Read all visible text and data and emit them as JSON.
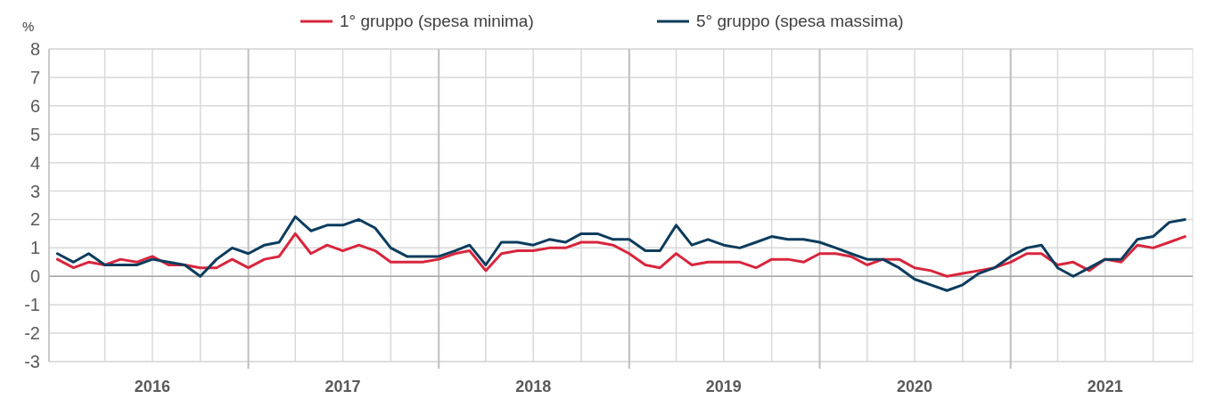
{
  "chart_data": {
    "type": "line",
    "ylabel": "%",
    "legend": "top",
    "grid": true,
    "marker": "none",
    "line_style": "solid",
    "ylim": [
      -3,
      8
    ],
    "yticks": [
      -3,
      -2,
      -1,
      0,
      1,
      2,
      3,
      4,
      5,
      6,
      7,
      8
    ],
    "xlim": [
      "2015-12-16",
      "2021-12-16"
    ],
    "xticks": [
      {
        "value": "2016-04-01",
        "label": null
      },
      {
        "value": "2016-07-01",
        "label": "2016"
      },
      {
        "value": "2016-10-01",
        "label": null
      },
      {
        "value": "2017-01-01",
        "label": null
      },
      {
        "value": "2017-04-01",
        "label": null
      },
      {
        "value": "2017-07-01",
        "label": "2017"
      },
      {
        "value": "2017-10-01",
        "label": null
      },
      {
        "value": "2018-01-01",
        "label": null
      },
      {
        "value": "2018-04-01",
        "label": null
      },
      {
        "value": "2018-07-01",
        "label": "2018"
      },
      {
        "value": "2018-10-01",
        "label": null
      },
      {
        "value": "2019-01-01",
        "label": null
      },
      {
        "value": "2019-04-01",
        "label": null
      },
      {
        "value": "2019-07-01",
        "label": "2019"
      },
      {
        "value": "2019-10-01",
        "label": null
      },
      {
        "value": "2020-01-01",
        "label": null
      },
      {
        "value": "2020-04-01",
        "label": null
      },
      {
        "value": "2020-07-01",
        "label": "2020"
      },
      {
        "value": "2020-10-01",
        "label": null
      },
      {
        "value": "2021-01-01",
        "label": null
      },
      {
        "value": "2021-04-01",
        "label": null
      },
      {
        "value": "2021-07-01",
        "label": "2021"
      },
      {
        "value": "2021-10-01",
        "label": null
      }
    ],
    "x": [
      "2016-01",
      "2016-02",
      "2016-03",
      "2016-04",
      "2016-05",
      "2016-06",
      "2016-07",
      "2016-08",
      "2016-09",
      "2016-10",
      "2016-11",
      "2016-12",
      "2017-01",
      "2017-02",
      "2017-03",
      "2017-04",
      "2017-05",
      "2017-06",
      "2017-07",
      "2017-08",
      "2017-09",
      "2017-10",
      "2017-11",
      "2017-12",
      "2018-01",
      "2018-02",
      "2018-03",
      "2018-04",
      "2018-05",
      "2018-06",
      "2018-07",
      "2018-08",
      "2018-09",
      "2018-10",
      "2018-11",
      "2018-12",
      "2019-01",
      "2019-02",
      "2019-03",
      "2019-04",
      "2019-05",
      "2019-06",
      "2019-07",
      "2019-08",
      "2019-09",
      "2019-10",
      "2019-11",
      "2019-12",
      "2020-01",
      "2020-02",
      "2020-03",
      "2020-04",
      "2020-05",
      "2020-06",
      "2020-07",
      "2020-08",
      "2020-09",
      "2020-10",
      "2020-11",
      "2020-12",
      "2021-01",
      "2021-02",
      "2021-03",
      "2021-04",
      "2021-05",
      "2021-06",
      "2021-07",
      "2021-08",
      "2021-09",
      "2021-10",
      "2021-11",
      "2021-12"
    ],
    "series": [
      {
        "name": "1° gruppo (spesa minima)",
        "color": "#d7263d",
        "values": [
          0.6,
          0.3,
          0.5,
          0.4,
          0.6,
          0.5,
          0.7,
          0.4,
          0.4,
          0.3,
          0.3,
          0.6,
          0.3,
          0.6,
          0.7,
          1.5,
          0.8,
          1.1,
          0.9,
          1.1,
          0.9,
          0.5,
          0.5,
          0.5,
          0.6,
          0.8,
          0.9,
          0.2,
          0.8,
          0.9,
          0.9,
          1.0,
          1.0,
          1.2,
          1.2,
          1.1,
          0.8,
          0.4,
          0.3,
          0.8,
          0.4,
          0.5,
          0.5,
          0.5,
          0.3,
          0.6,
          0.6,
          0.5,
          0.8,
          0.8,
          0.7,
          0.4,
          0.6,
          0.6,
          0.3,
          0.2,
          0,
          0.1,
          0.2,
          0.3,
          0.5,
          0.8,
          0.8,
          0.4,
          0.5,
          0.2,
          0.6,
          0.5,
          1.1,
          1.0,
          1.2,
          1.4
        ]
      },
      {
        "name": "5° gruppo (spesa massima)",
        "color": "#0b3c5d",
        "values": [
          0.8,
          0.5,
          0.8,
          0.4,
          0.4,
          0.4,
          0.6,
          0.5,
          0.4,
          0,
          0.6,
          1.0,
          0.8,
          1.1,
          1.2,
          2.1,
          1.6,
          1.8,
          1.8,
          2.0,
          1.7,
          1.0,
          0.7,
          0.7,
          0.7,
          0.9,
          1.1,
          0.4,
          1.2,
          1.2,
          1.1,
          1.3,
          1.2,
          1.5,
          1.5,
          1.3,
          1.3,
          0.9,
          0.9,
          1.8,
          1.1,
          1.3,
          1.1,
          1.0,
          1.2,
          1.4,
          1.3,
          1.3,
          1.2,
          1.0,
          0.8,
          0.6,
          0.6,
          0.3,
          -0.1,
          -0.3,
          -0.5,
          -0.3,
          0.1,
          0.3,
          0.7,
          1.0,
          1.1,
          0.3,
          0,
          0.3,
          0.6,
          0.6,
          1.3,
          1.4,
          1.9,
          2.0
        ]
      }
    ]
  }
}
